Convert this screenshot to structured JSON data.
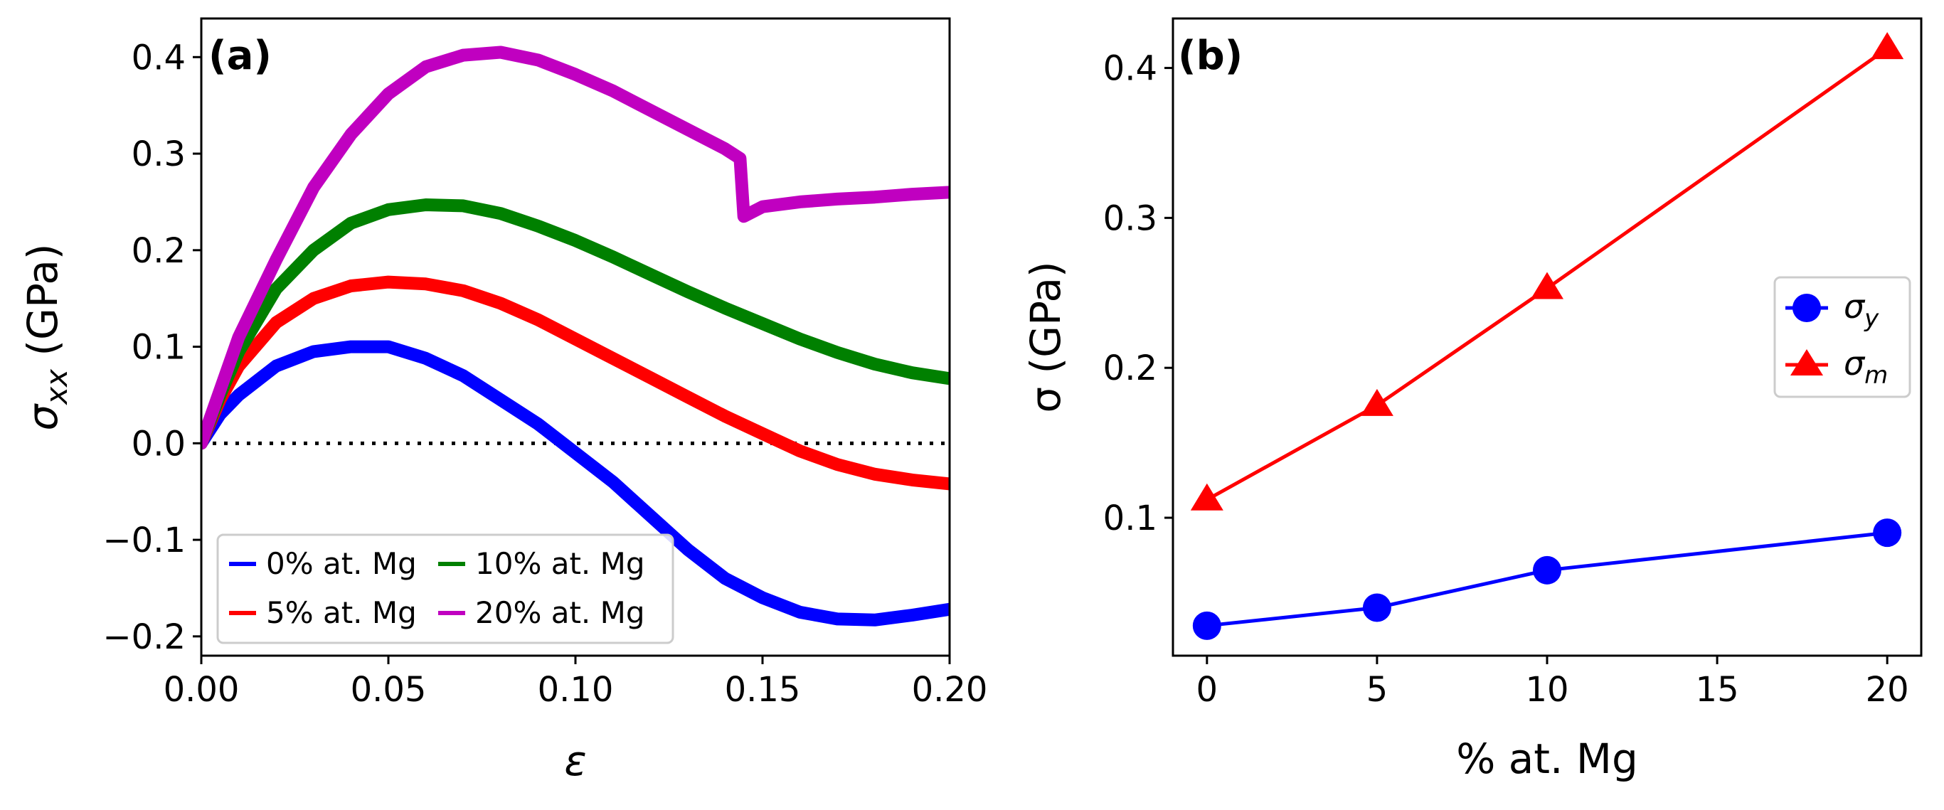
{
  "chart_data": [
    {
      "type": "line",
      "panel_label": "(a)",
      "xlabel": "ε",
      "ylabel_main": "σ",
      "ylabel_sub": "xx",
      "ylabel_unit": " (GPa)",
      "xlim": [
        0,
        0.2
      ],
      "ylim": [
        -0.22,
        0.44
      ],
      "xticks": [
        0,
        0.05,
        0.1,
        0.15,
        0.2
      ],
      "xtick_labels": [
        "0.00",
        "0.05",
        "0.10",
        "0.15",
        "0.20"
      ],
      "yticks": [
        -0.2,
        -0.1,
        0,
        0.1,
        0.2,
        0.3,
        0.4
      ],
      "ytick_labels": [
        "−0.2",
        "−0.1",
        "0.0",
        "0.1",
        "0.2",
        "0.3",
        "0.4"
      ],
      "reference_line": {
        "y": 0,
        "style": "dotted"
      },
      "legend_position": "lower-left",
      "series": [
        {
          "name": "0% at. Mg",
          "color": "#0000ff",
          "x": [
            0,
            0.005,
            0.01,
            0.02,
            0.03,
            0.04,
            0.05,
            0.06,
            0.07,
            0.08,
            0.09,
            0.1,
            0.11,
            0.12,
            0.13,
            0.14,
            0.15,
            0.16,
            0.17,
            0.18,
            0.19,
            0.2
          ],
          "y": [
            0,
            0.03,
            0.05,
            0.08,
            0.095,
            0.1,
            0.1,
            0.088,
            0.07,
            0.045,
            0.02,
            -0.01,
            -0.04,
            -0.075,
            -0.11,
            -0.14,
            -0.16,
            -0.175,
            -0.182,
            -0.183,
            -0.178,
            -0.172
          ]
        },
        {
          "name": "5% at. Mg",
          "color": "#ff0000",
          "x": [
            0,
            0.005,
            0.01,
            0.02,
            0.03,
            0.04,
            0.05,
            0.06,
            0.07,
            0.08,
            0.09,
            0.1,
            0.11,
            0.12,
            0.13,
            0.14,
            0.15,
            0.16,
            0.17,
            0.18,
            0.19,
            0.2
          ],
          "y": [
            0,
            0.045,
            0.08,
            0.125,
            0.15,
            0.163,
            0.167,
            0.165,
            0.158,
            0.145,
            0.128,
            0.108,
            0.088,
            0.068,
            0.048,
            0.028,
            0.01,
            -0.008,
            -0.022,
            -0.032,
            -0.038,
            -0.042
          ]
        },
        {
          "name": "10% at. Mg",
          "color": "#008000",
          "x": [
            0,
            0.005,
            0.01,
            0.02,
            0.03,
            0.04,
            0.05,
            0.06,
            0.07,
            0.08,
            0.09,
            0.1,
            0.11,
            0.12,
            0.13,
            0.14,
            0.15,
            0.16,
            0.17,
            0.18,
            0.19,
            0.2
          ],
          "y": [
            0,
            0.05,
            0.095,
            0.16,
            0.2,
            0.228,
            0.242,
            0.247,
            0.246,
            0.238,
            0.225,
            0.21,
            0.193,
            0.175,
            0.157,
            0.14,
            0.124,
            0.108,
            0.094,
            0.082,
            0.073,
            0.067
          ]
        },
        {
          "name": "20% at. Mg",
          "color": "#c000c0",
          "x": [
            0,
            0.005,
            0.01,
            0.02,
            0.03,
            0.04,
            0.05,
            0.06,
            0.07,
            0.08,
            0.09,
            0.1,
            0.11,
            0.12,
            0.13,
            0.14,
            0.144,
            0.145,
            0.15,
            0.16,
            0.17,
            0.18,
            0.19,
            0.2
          ],
          "y": [
            0,
            0.055,
            0.11,
            0.19,
            0.265,
            0.32,
            0.362,
            0.39,
            0.402,
            0.405,
            0.397,
            0.382,
            0.365,
            0.345,
            0.325,
            0.305,
            0.295,
            0.235,
            0.245,
            0.25,
            0.253,
            0.255,
            0.258,
            0.26
          ]
        }
      ]
    },
    {
      "type": "line",
      "panel_label": "(b)",
      "xlabel": "% at. Mg",
      "ylabel": "σ (GPa)",
      "xlim": [
        -1,
        21
      ],
      "ylim": [
        0.008,
        0.433
      ],
      "xticks": [
        0,
        5,
        10,
        15,
        20
      ],
      "xtick_labels": [
        "0",
        "5",
        "10",
        "15",
        "20"
      ],
      "yticks": [
        0.1,
        0.2,
        0.3,
        0.4
      ],
      "ytick_labels": [
        "0.1",
        "0.2",
        "0.3",
        "0.4"
      ],
      "legend_position": "center-right",
      "series": [
        {
          "name_main": "σ",
          "name_sub": "y",
          "color": "#0000ff",
          "marker": "circle",
          "x": [
            0,
            5,
            10,
            20
          ],
          "y": [
            0.028,
            0.04,
            0.065,
            0.09
          ]
        },
        {
          "name_main": "σ",
          "name_sub": "m",
          "color": "#ff0000",
          "marker": "triangle",
          "x": [
            0,
            5,
            10,
            20
          ],
          "y": [
            0.112,
            0.175,
            0.253,
            0.413
          ]
        }
      ]
    }
  ]
}
